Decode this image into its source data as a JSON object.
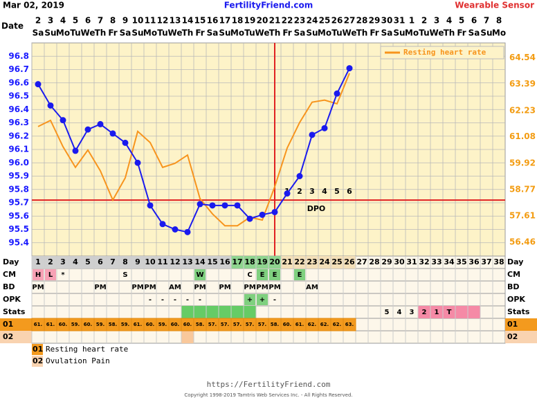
{
  "header": {
    "date": "Mar 02, 2019",
    "site": "FertilityFriend.com",
    "mode": "Wearable Sensor"
  },
  "chart_data": {
    "type": "line",
    "date_label": "Date",
    "categories": [
      1,
      2,
      3,
      4,
      5,
      6,
      7,
      8,
      9,
      10,
      11,
      12,
      13,
      14,
      15,
      16,
      17,
      18,
      19,
      20,
      21,
      22,
      23,
      24,
      25,
      26,
      27,
      28,
      29,
      30,
      31,
      32,
      33,
      34,
      35,
      36,
      37,
      38
    ],
    "dates": [
      2,
      3,
      4,
      5,
      6,
      7,
      8,
      9,
      10,
      11,
      12,
      13,
      14,
      15,
      16,
      17,
      18,
      19,
      20,
      21,
      22,
      23,
      24,
      25,
      26,
      27,
      28,
      29,
      30,
      31,
      1,
      2,
      3,
      4,
      5,
      6,
      7,
      8
    ],
    "weekdays": [
      "Sa",
      "Su",
      "Mo",
      "Tu",
      "We",
      "Th",
      "Fr",
      "Sa",
      "Su",
      "Mo",
      "Tu",
      "We",
      "Th",
      "Fr",
      "Sa",
      "Su",
      "Mo",
      "Tu",
      "We",
      "Th",
      "Fr",
      "Sa",
      "Su",
      "Mo",
      "Tu",
      "We",
      "Th",
      "Fr",
      "Sa",
      "Su",
      "Mo",
      "Tu",
      "We",
      "Th",
      "Fr",
      "Sa",
      "Su",
      "Mo"
    ],
    "series": [
      {
        "color": "#1a1aee",
        "values": [
          96.59,
          96.43,
          96.32,
          96.09,
          96.25,
          96.29,
          96.22,
          96.15,
          96.0,
          95.68,
          95.54,
          95.5,
          95.48,
          95.69,
          95.68,
          95.68,
          95.68,
          95.58,
          95.61,
          95.63,
          95.77,
          95.9,
          96.21,
          96.26,
          96.52,
          96.71,
          null,
          null,
          null,
          null,
          null,
          null,
          null,
          null,
          null,
          null,
          null,
          null
        ]
      },
      {
        "name": "Resting heart rate",
        "color": "#f7941d",
        "axis": "y2",
        "values": [
          61.53,
          61.8,
          60.65,
          59.74,
          60.5,
          59.59,
          58.31,
          59.28,
          61.32,
          60.83,
          59.74,
          59.92,
          60.28,
          58.37,
          57.7,
          57.18,
          57.18,
          57.55,
          57.43,
          58.89,
          60.59,
          61.71,
          62.6,
          62.69,
          62.53,
          63.87,
          null,
          null,
          null,
          null,
          null,
          null,
          null,
          null,
          null,
          null,
          null,
          null
        ]
      }
    ],
    "ylim": [
      95.3,
      96.9
    ],
    "yticks": [
      96.8,
      96.7,
      96.6,
      96.5,
      96.4,
      96.3,
      96.2,
      96.1,
      {
        "value": 96,
        "label": "96.0"
      },
      95.9,
      95.8,
      95.7,
      95.6,
      95.5,
      95.4
    ],
    "y2lim": [
      55.85,
      65.2
    ],
    "y2ticks": [
      64.54,
      63.39,
      62.23,
      61.08,
      59.92,
      58.77,
      57.61,
      56.46
    ],
    "coverline": 95.72,
    "ovulation_day": 20,
    "dpo_numbers": [
      1,
      2,
      3,
      4,
      5,
      6
    ],
    "dpo_label": "DPO",
    "grid": true,
    "legend": "top-right"
  },
  "table": {
    "row_labels": [
      "Day",
      "CM",
      "BD",
      "OPK",
      "Stats",
      "01",
      "02"
    ],
    "day_shading": [
      {
        "from": 1,
        "to": 16,
        "color": "#cfcfcf"
      },
      {
        "from": 17,
        "to": 20,
        "color": "#8fd48f"
      },
      {
        "from": 21,
        "to": 26,
        "color": "#f3dfb8"
      }
    ],
    "cm": [
      {
        "day": 1,
        "text": "H",
        "color": "#f7a1b5"
      },
      {
        "day": 2,
        "text": "L",
        "color": "#f7a1b5"
      },
      {
        "day": 3,
        "text": "*"
      },
      {
        "day": 8,
        "text": "S"
      },
      {
        "day": 14,
        "text": "W",
        "color": "#7fd07f"
      },
      {
        "day": 18,
        "text": "C"
      },
      {
        "day": 19,
        "text": "E",
        "color": "#7fd07f"
      },
      {
        "day": 20,
        "text": "E",
        "color": "#7fd07f"
      },
      {
        "day": 22,
        "text": "E",
        "color": "#7fd07f"
      }
    ],
    "bd": [
      {
        "day": 1,
        "text": "PM"
      },
      {
        "day": 6,
        "text": "PM"
      },
      {
        "day": 9,
        "text": "PM"
      },
      {
        "day": 10,
        "text": "PM"
      },
      {
        "day": 12,
        "text": "AM"
      },
      {
        "day": 14,
        "text": "PM"
      },
      {
        "day": 16,
        "text": "PM"
      },
      {
        "day": 18,
        "text": "PM"
      },
      {
        "day": 19,
        "text": "PM"
      },
      {
        "day": 20,
        "text": "PM"
      },
      {
        "day": 23,
        "text": "AM"
      }
    ],
    "opk": [
      {
        "day": 10,
        "text": "-"
      },
      {
        "day": 11,
        "text": "-"
      },
      {
        "day": 12,
        "text": "-"
      },
      {
        "day": 13,
        "text": "-"
      },
      {
        "day": 14,
        "text": "-"
      },
      {
        "day": 18,
        "text": "+",
        "color": "#7fd07f"
      },
      {
        "day": 19,
        "text": "+",
        "color": "#7fd07f"
      },
      {
        "day": 20,
        "text": "-"
      }
    ],
    "stats_shading": [
      {
        "from": 13,
        "to": 18,
        "color": "#66cc66"
      },
      {
        "from": 32,
        "to": 36,
        "color": "#f58aa6"
      }
    ],
    "stats": [
      {
        "day": 29,
        "text": "5"
      },
      {
        "day": 30,
        "text": "4"
      },
      {
        "day": 31,
        "text": "3"
      },
      {
        "day": 32,
        "text": "2"
      },
      {
        "day": 33,
        "text": "1"
      },
      {
        "day": 34,
        "text": "T"
      }
    ],
    "hr_row_color": "#f39a1e",
    "hr_row": [
      "61.",
      "61.",
      "60.",
      "59.",
      "60.",
      "59.",
      "58.",
      "59.",
      "61.",
      "60.",
      "59.",
      "60.",
      "60.",
      "58.",
      "57.",
      "57.",
      "57.",
      "57.",
      "57.",
      "58.",
      "60.",
      "61.",
      "62.",
      "62.",
      "62.",
      "63."
    ],
    "pain_shading": [
      {
        "from": 13,
        "to": 13,
        "color": "#f9c89b"
      }
    ]
  },
  "legend": [
    {
      "code": "01",
      "text": "Resting heart rate",
      "color": "#f39a1e"
    },
    {
      "code": "02",
      "text": "Ovulation Pain",
      "color": "#f9d3b0"
    }
  ],
  "footer": {
    "url": "https://FertilityFriend.com",
    "copyright": "Copyright 1998-2019 Tamtris Web Services Inc. - All Rights Reserved."
  }
}
